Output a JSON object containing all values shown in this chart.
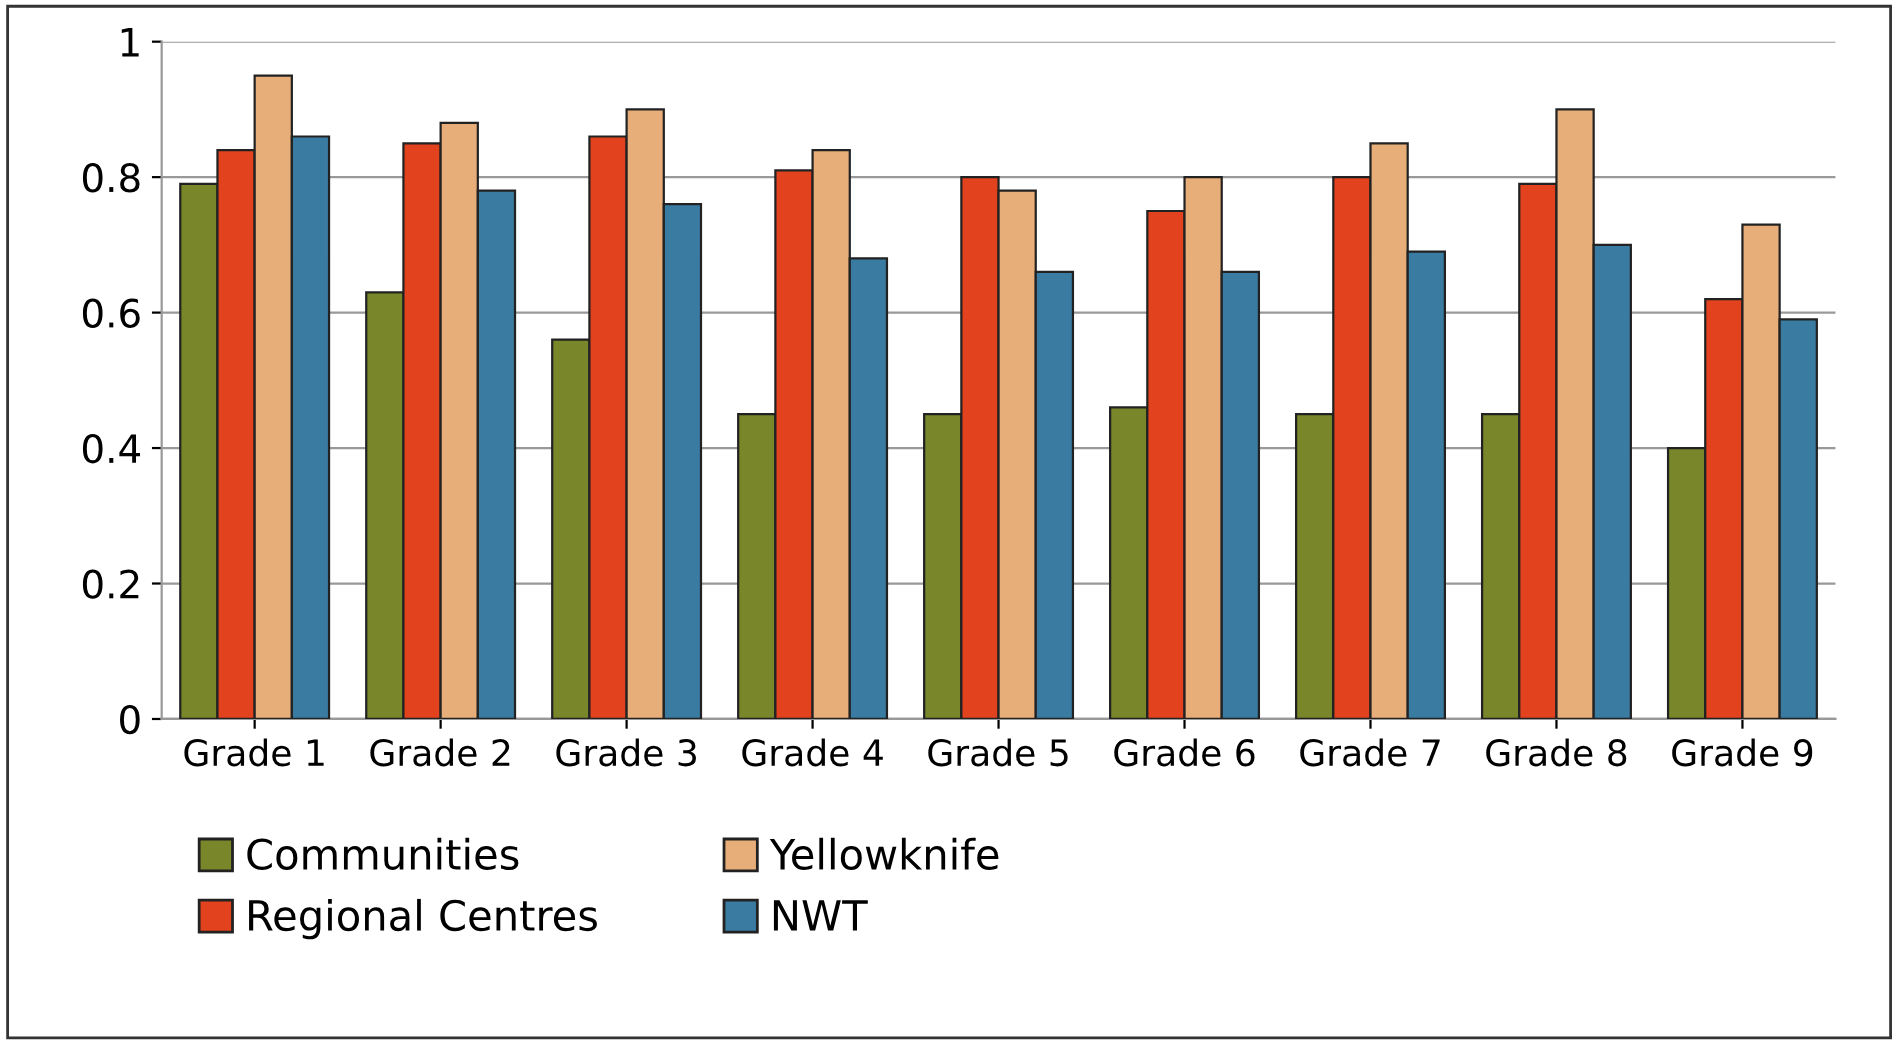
{
  "chart_data": {
    "type": "bar",
    "categories": [
      "Grade 1",
      "Grade 2",
      "Grade 3",
      "Grade 4",
      "Grade 5",
      "Grade 6",
      "Grade 7",
      "Grade 8",
      "Grade 9"
    ],
    "series": [
      {
        "name": "Communities",
        "color": "#7a862a",
        "values": [
          0.79,
          0.63,
          0.56,
          0.45,
          0.45,
          0.46,
          0.45,
          0.45,
          0.4
        ]
      },
      {
        "name": "Regional Centres",
        "color": "#e2421e",
        "values": [
          0.84,
          0.85,
          0.86,
          0.81,
          0.8,
          0.75,
          0.8,
          0.79,
          0.62
        ]
      },
      {
        "name": "Yellowknife",
        "color": "#e8ae7a",
        "values": [
          0.95,
          0.88,
          0.9,
          0.84,
          0.78,
          0.8,
          0.85,
          0.9,
          0.73
        ]
      },
      {
        "name": "NWT",
        "color": "#3a7ba2",
        "values": [
          0.86,
          0.78,
          0.76,
          0.68,
          0.66,
          0.66,
          0.69,
          0.7,
          0.59
        ]
      }
    ],
    "ylim": [
      0,
      1
    ],
    "yticks": [
      0,
      0.2,
      0.4,
      0.6,
      0.8,
      1
    ],
    "grid": "y",
    "legend": "bottom"
  }
}
